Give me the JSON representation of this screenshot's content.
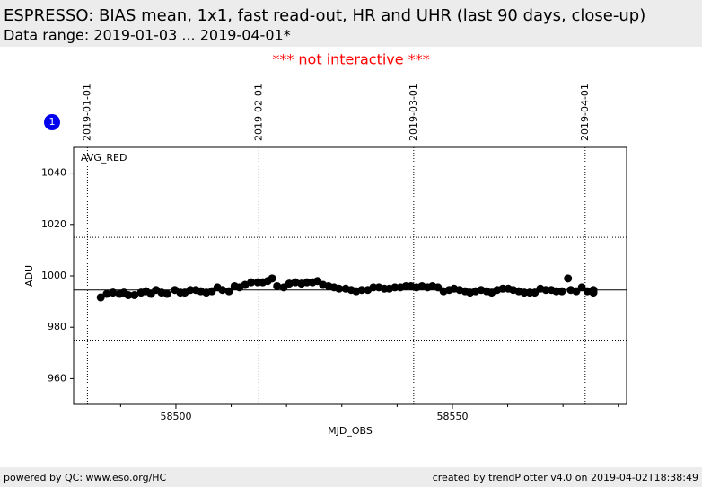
{
  "header": {
    "title": "ESPRESSO: BIAS mean, 1x1, fast read-out, HR and UHR (last 90 days, close-up)",
    "subtitle": "Data range: 2019-01-03 ... 2019-04-01*",
    "notice": "*** not interactive ***"
  },
  "footer": {
    "left": "powered by QC: www.eso.org/HC",
    "right": "created by trendPlotter v4.0 on 2019-04-02T18:38:49"
  },
  "chart_data": {
    "type": "scatter",
    "badge": "1",
    "xlabel": "MJD_OBS",
    "ylabel": "ADU",
    "xlim": [
      58481.5,
      58581.5
    ],
    "ylim": [
      950,
      1050
    ],
    "xticks": [
      58500,
      58550
    ],
    "xminor_ticks": [
      58490,
      58510,
      58520,
      58530,
      58540,
      58560,
      58570,
      58580
    ],
    "yticks": [
      960,
      980,
      1000,
      1020,
      1040
    ],
    "date_markers": [
      {
        "value": 58484,
        "label": "2019-01-01"
      },
      {
        "value": 58515,
        "label": "2019-02-01"
      },
      {
        "value": 58543,
        "label": "2019-03-01"
      },
      {
        "value": 58574,
        "label": "2019-04-01"
      }
    ],
    "mean": 994.5,
    "limits": [
      975,
      1015
    ],
    "series": [
      {
        "name": "AVG_RED",
        "color": "#000000",
        "x": [
          58486.4,
          58487.5,
          58488.6,
          58489.8,
          58490.6,
          58491.4,
          58492.5,
          58493.7,
          58494.6,
          58495.5,
          58496.4,
          58497.4,
          58498.4,
          58499.8,
          58500.8,
          58501.6,
          58502.6,
          58503.6,
          58504.5,
          58505.5,
          58506.5,
          58507.5,
          58508.4,
          58509.6,
          58510.6,
          58511.5,
          58512.5,
          58513.6,
          58514.8,
          58515.7,
          58516.6,
          58517.4,
          58518.3,
          58519.5,
          58520.5,
          58521.6,
          58522.7,
          58523.7,
          58524.7,
          58525.6,
          58526.6,
          58527.6,
          58528.6,
          58529.5,
          58530.7,
          58531.7,
          58532.6,
          58533.6,
          58534.7,
          58535.7,
          58536.7,
          58537.7,
          58538.6,
          58539.6,
          58540.6,
          58541.6,
          58542.5,
          58543.5,
          58544.5,
          58545.5,
          58546.4,
          58547.4,
          58548.4,
          58549.4,
          58550.3,
          58551.3,
          58552.3,
          58553.2,
          58554.2,
          58555.2,
          58556.2,
          58557.1,
          58558.1,
          58559.1,
          58560.1,
          58561.0,
          58562.0,
          58563.0,
          58564.0,
          58564.9,
          58565.9,
          58566.9,
          58567.9,
          58568.8,
          58569.8,
          58570.9,
          58571.4,
          58572.4,
          58573.4,
          58574.4,
          58575.5,
          58575.5
        ],
        "values": [
          991.6,
          993,
          993.5,
          993,
          993.5,
          992.5,
          992.5,
          993.5,
          994,
          993,
          994.5,
          993.5,
          993,
          994.5,
          993.5,
          993.5,
          994.5,
          994.5,
          994,
          993.5,
          994,
          995.5,
          994.5,
          994,
          996,
          995.5,
          996.5,
          997.5,
          997.5,
          997.5,
          998,
          999,
          996,
          995.5,
          997,
          997.5,
          997,
          997.5,
          997.5,
          998,
          996.5,
          996,
          995.5,
          995,
          995,
          994.5,
          994,
          994.5,
          994.5,
          995.5,
          995.5,
          995,
          995,
          995.5,
          995.5,
          996,
          996,
          995.5,
          996,
          995.5,
          996,
          995.5,
          994,
          994.5,
          995,
          994.5,
          994,
          993.5,
          994,
          994.5,
          994,
          993.5,
          994.5,
          995,
          995,
          994.5,
          994,
          993.5,
          993.5,
          993.5,
          995,
          994.5,
          994.5,
          994,
          994,
          999,
          994.5,
          994,
          995.5,
          994,
          994.5,
          993.5
        ]
      }
    ]
  }
}
